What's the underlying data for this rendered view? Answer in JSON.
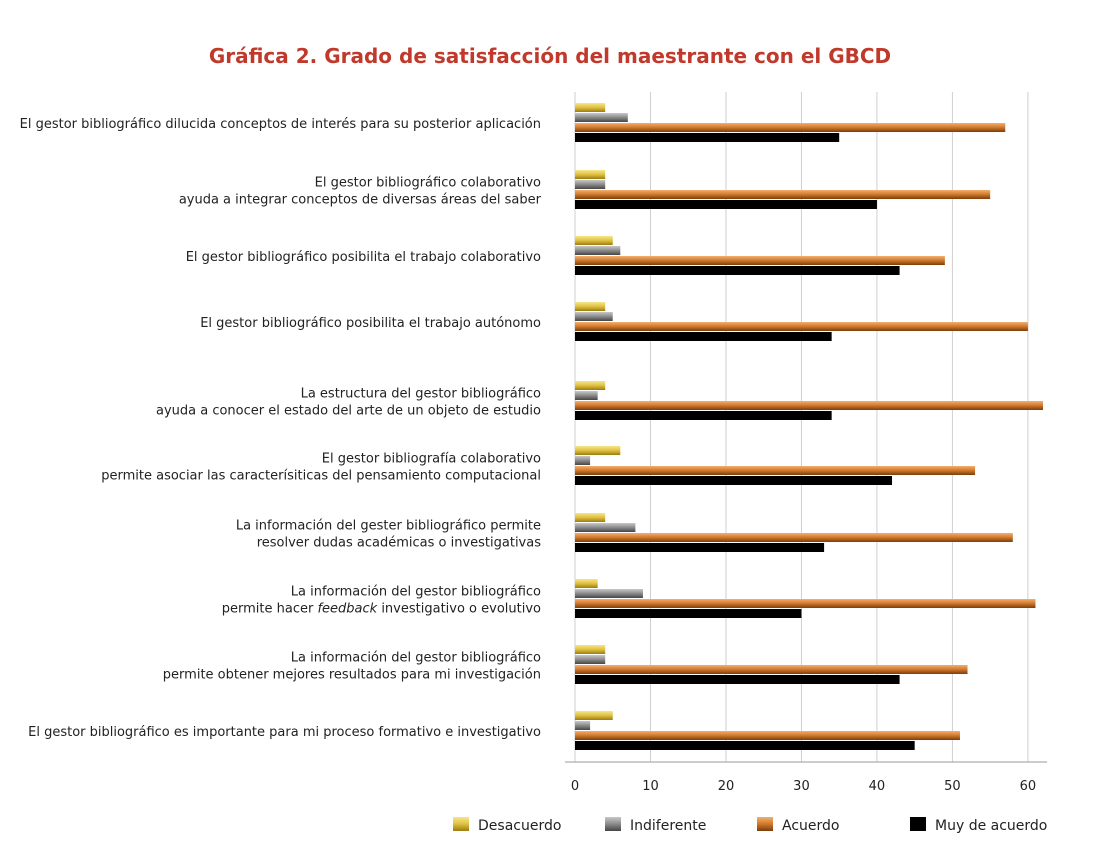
{
  "chart_data": {
    "type": "bar",
    "orientation": "horizontal",
    "title": "Gráfica 2. Grado de satisfacción del maestrante con el GBCD",
    "xlim": [
      0,
      62
    ],
    "xticks": [
      0,
      10,
      20,
      30,
      40,
      50,
      60
    ],
    "grid": true,
    "legend_position": "bottom",
    "categories": [
      [
        "El gestor bibliográfico dilucida conceptos de interés para su posterior aplicación"
      ],
      [
        "El gestor bibliográfico colaborativo",
        "ayuda a integrar conceptos de diversas áreas del saber"
      ],
      [
        "El gestor bibliográfico posibilita el trabajo colaborativo"
      ],
      [
        "El gestor bibliográfico posibilita el trabajo autónomo"
      ],
      [
        "La estructura del gestor bibliográfico",
        "ayuda a conocer el estado del arte de un objeto de estudio"
      ],
      [
        "El gestor bibliografía colaborativo",
        "permite asociar las caracterísiticas del pensamiento computacional"
      ],
      [
        "La información del gester bibliográfico permite",
        "resolver dudas académicas o investigativas"
      ],
      [
        "La información del gestor bibliográfico",
        "permite hacer feedback investigativo o evolutivo"
      ],
      [
        "La información del gestor bibliográfico",
        "permite obtener mejores resultados para mi investigación"
      ],
      [
        "El gestor bibliográfico es importante para mi proceso formativo e investigativo"
      ]
    ],
    "series": [
      {
        "name": "Desacuerdo",
        "color": "#e0c040",
        "values": [
          4,
          4,
          5,
          4,
          4,
          6,
          4,
          3,
          4,
          5
        ]
      },
      {
        "name": "Indiferente",
        "color": "#8a8a8a",
        "values": [
          7,
          4,
          6,
          5,
          3,
          2,
          8,
          9,
          4,
          2
        ]
      },
      {
        "name": "Acuerdo",
        "color": "#d0782a",
        "values": [
          57,
          55,
          49,
          60,
          62,
          53,
          58,
          61,
          52,
          51
        ]
      },
      {
        "name": "Muy de acuerdo",
        "color": "#2a7ab0",
        "values": [
          35,
          40,
          43,
          34,
          34,
          42,
          33,
          30,
          43,
          45
        ]
      }
    ]
  }
}
